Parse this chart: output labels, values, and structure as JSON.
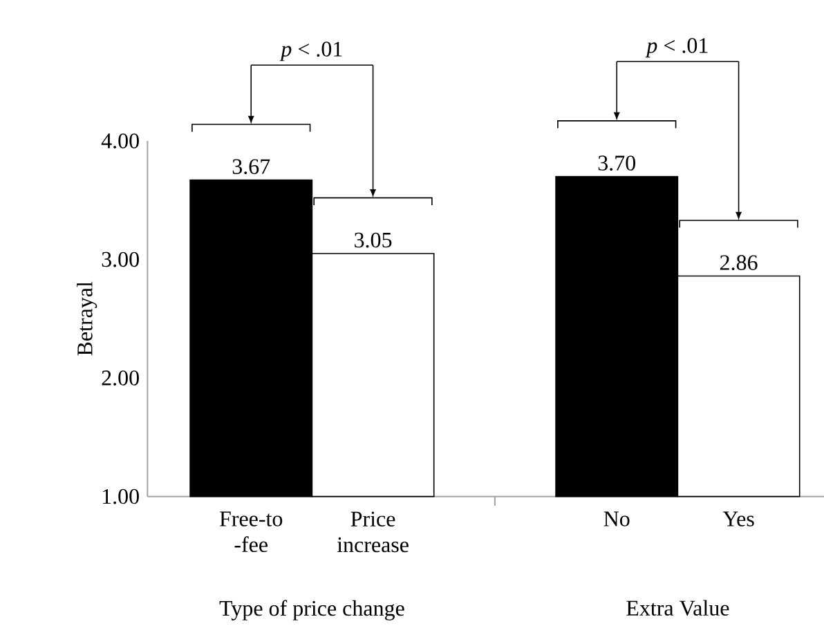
{
  "chart_data": {
    "type": "bar",
    "ylabel": "Betrayal",
    "categories": [
      "Free-to -fee",
      "Price increase",
      null,
      "No",
      "Yes"
    ],
    "values": [
      3.67,
      3.05,
      null,
      3.7,
      2.86
    ],
    "value_labels": [
      "3.67",
      "3.05",
      null,
      "3.70",
      "2.86"
    ],
    "colors": [
      "#000000",
      "#ffffff",
      "#ffffff",
      "#000000",
      "#ffffff"
    ],
    "ylim": [
      1,
      4
    ],
    "yticks": [
      {
        "value": 1,
        "label": "1.00"
      },
      {
        "value": 2,
        "label": "2.00"
      },
      {
        "value": 3,
        "label": "3.00"
      },
      {
        "value": 4,
        "label": "4.00"
      }
    ],
    "annotations": [
      "*p* < .01",
      "*p* < .01",
      "Type of price change",
      "Extra Value"
    ],
    "grid": false
  }
}
